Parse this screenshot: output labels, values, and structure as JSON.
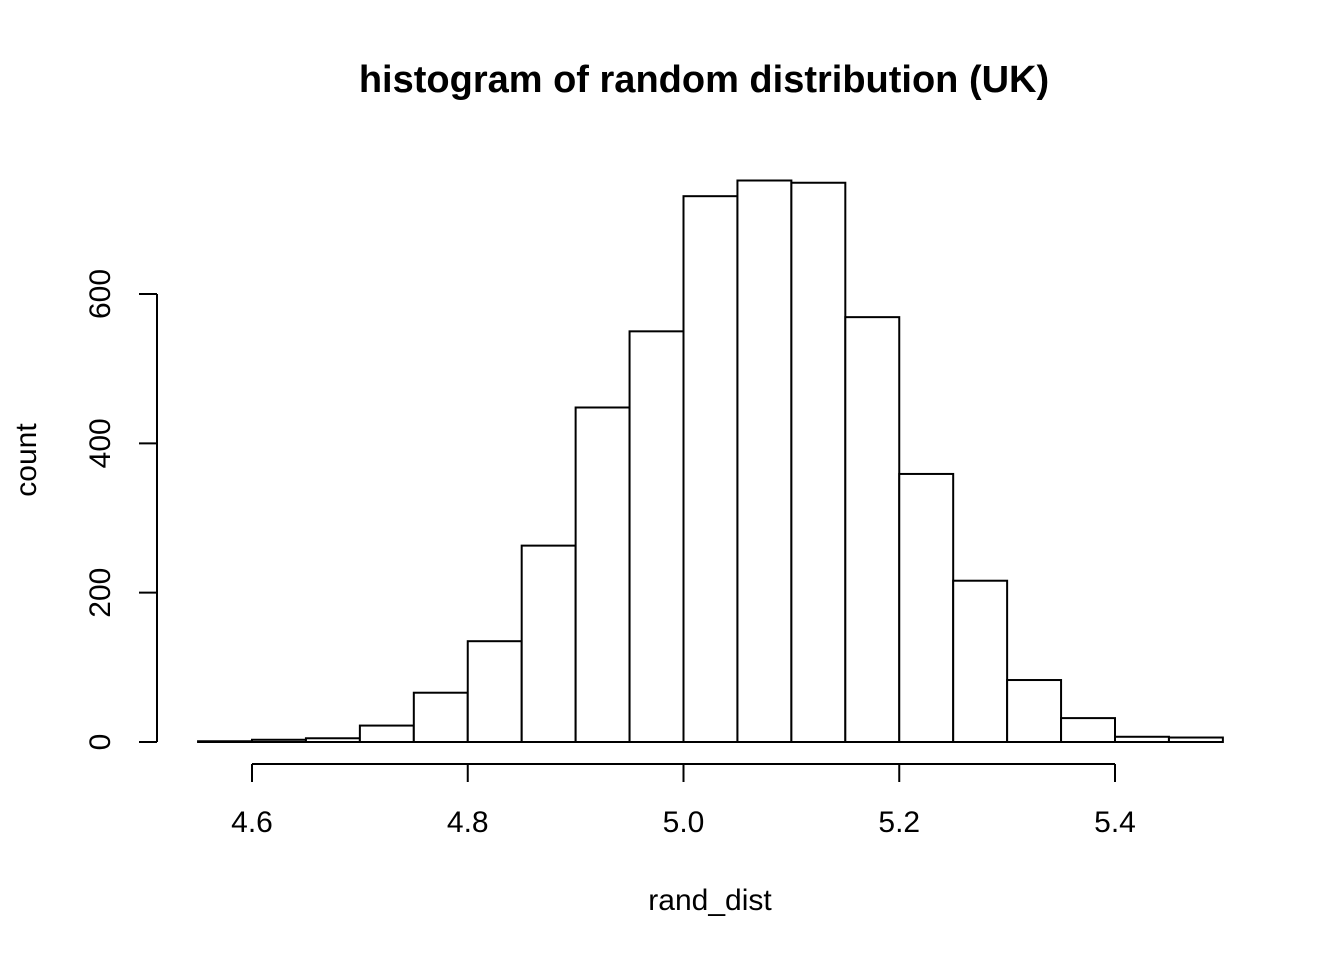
{
  "chart_data": {
    "type": "bar",
    "title": "histogram of random distribution (UK)",
    "xlabel": "rand_dist",
    "ylabel": "count",
    "bin_edges": [
      4.55,
      4.6,
      4.65,
      4.7,
      4.75,
      4.8,
      4.85,
      4.9,
      4.95,
      5.0,
      5.05,
      5.1,
      5.15,
      5.2,
      5.25,
      5.3,
      5.35,
      5.4,
      5.45,
      5.5
    ],
    "values": [
      1,
      3,
      5,
      22,
      66,
      135,
      263,
      448,
      550,
      731,
      752,
      749,
      569,
      359,
      216,
      83,
      32,
      7,
      6
    ],
    "xlim": [
      4.55,
      5.5
    ],
    "ylim": [
      0,
      752
    ],
    "x_ticks": [
      4.6,
      4.8,
      5.0,
      5.2,
      5.4
    ],
    "x_tick_labels": [
      "4.6",
      "4.8",
      "5.0",
      "5.2",
      "5.4"
    ],
    "y_ticks": [
      0,
      200,
      400,
      600
    ],
    "y_tick_labels": [
      "0",
      "200",
      "400",
      "600"
    ],
    "grid": false,
    "bar_fill": "#ffffff",
    "bar_stroke": "#000000"
  }
}
